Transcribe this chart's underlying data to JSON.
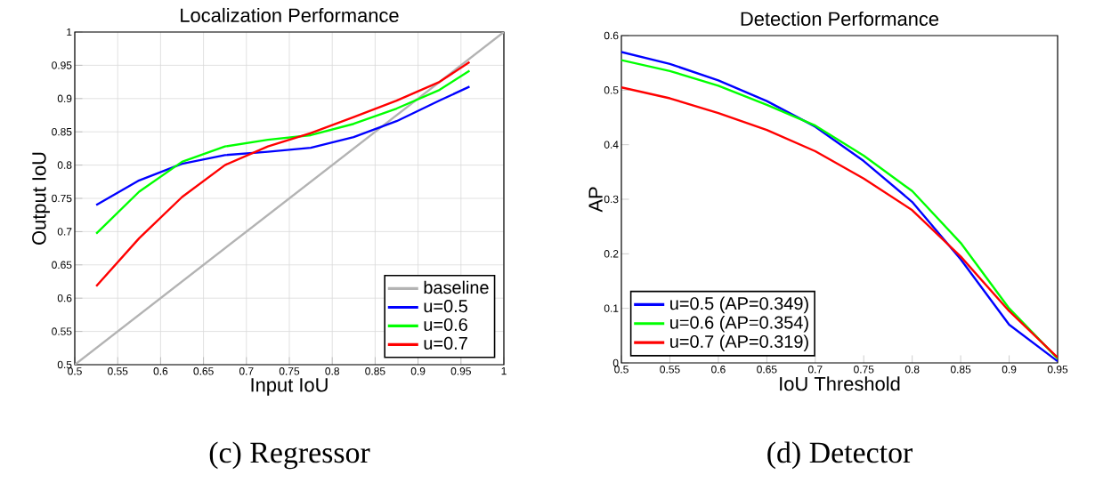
{
  "chart_data": [
    {
      "type": "line",
      "title": "Localization Performance",
      "xlabel": "Input IoU",
      "ylabel": "Output IoU",
      "annotations": [
        "(c) Regressor"
      ],
      "xlim": [
        0.5,
        1
      ],
      "ylim": [
        0.5,
        1
      ],
      "xticks": [
        0.5,
        0.55,
        0.6,
        0.65,
        0.7,
        0.75,
        0.8,
        0.85,
        0.9,
        0.95,
        1
      ],
      "yticks": [
        0.5,
        0.55,
        0.6,
        0.65,
        0.7,
        0.75,
        0.8,
        0.85,
        0.9,
        0.95,
        1
      ],
      "grid": true,
      "legend": "bottom right",
      "marker": "none",
      "line_style": "solid",
      "x": [
        0.525,
        0.575,
        0.625,
        0.675,
        0.725,
        0.775,
        0.825,
        0.875,
        0.925,
        0.96
      ],
      "series": [
        {
          "name": "baseline",
          "color": "#b3b3b3",
          "x": [
            0.5,
            1
          ],
          "values": [
            0.5,
            1
          ]
        },
        {
          "name": "u=0.5",
          "color": "#0000ff",
          "values": [
            0.74,
            0.777,
            0.802,
            0.815,
            0.82,
            0.826,
            0.842,
            0.866,
            0.897,
            0.918
          ]
        },
        {
          "name": "u=0.6",
          "color": "#00ff00",
          "values": [
            0.697,
            0.76,
            0.805,
            0.828,
            0.838,
            0.845,
            0.862,
            0.885,
            0.913,
            0.942
          ]
        },
        {
          "name": "u=0.7",
          "color": "#ff0000",
          "values": [
            0.618,
            0.69,
            0.752,
            0.8,
            0.828,
            0.848,
            0.872,
            0.897,
            0.925,
            0.955
          ]
        }
      ]
    },
    {
      "type": "line",
      "title": "Detection Performance",
      "xlabel": "IoU Threshold",
      "ylabel": "AP",
      "annotations": [
        "(d) Detector"
      ],
      "xlim": [
        0.5,
        0.95
      ],
      "ylim": [
        0,
        0.6
      ],
      "xticks": [
        0.5,
        0.55,
        0.6,
        0.65,
        0.7,
        0.75,
        0.8,
        0.85,
        0.9,
        0.95
      ],
      "yticks": [
        0,
        0.1,
        0.2,
        0.3,
        0.4,
        0.5,
        0.6
      ],
      "grid": false,
      "legend": "bottom left",
      "marker": "none",
      "line_style": "solid",
      "x": [
        0.5,
        0.55,
        0.6,
        0.65,
        0.7,
        0.75,
        0.8,
        0.85,
        0.9,
        0.95
      ],
      "series": [
        {
          "name": "u=0.5 (AP=0.349)",
          "color": "#0000ff",
          "values": [
            0.57,
            0.548,
            0.518,
            0.48,
            0.433,
            0.37,
            0.295,
            0.19,
            0.07,
            0.003
          ]
        },
        {
          "name": "u=0.6 (AP=0.354)",
          "color": "#00ff00",
          "values": [
            0.555,
            0.535,
            0.508,
            0.473,
            0.435,
            0.38,
            0.315,
            0.22,
            0.1,
            0.008
          ]
        },
        {
          "name": "u=0.7 (AP=0.319)",
          "color": "#ff0000",
          "values": [
            0.505,
            0.485,
            0.458,
            0.427,
            0.388,
            0.338,
            0.28,
            0.195,
            0.095,
            0.01
          ]
        }
      ]
    }
  ]
}
